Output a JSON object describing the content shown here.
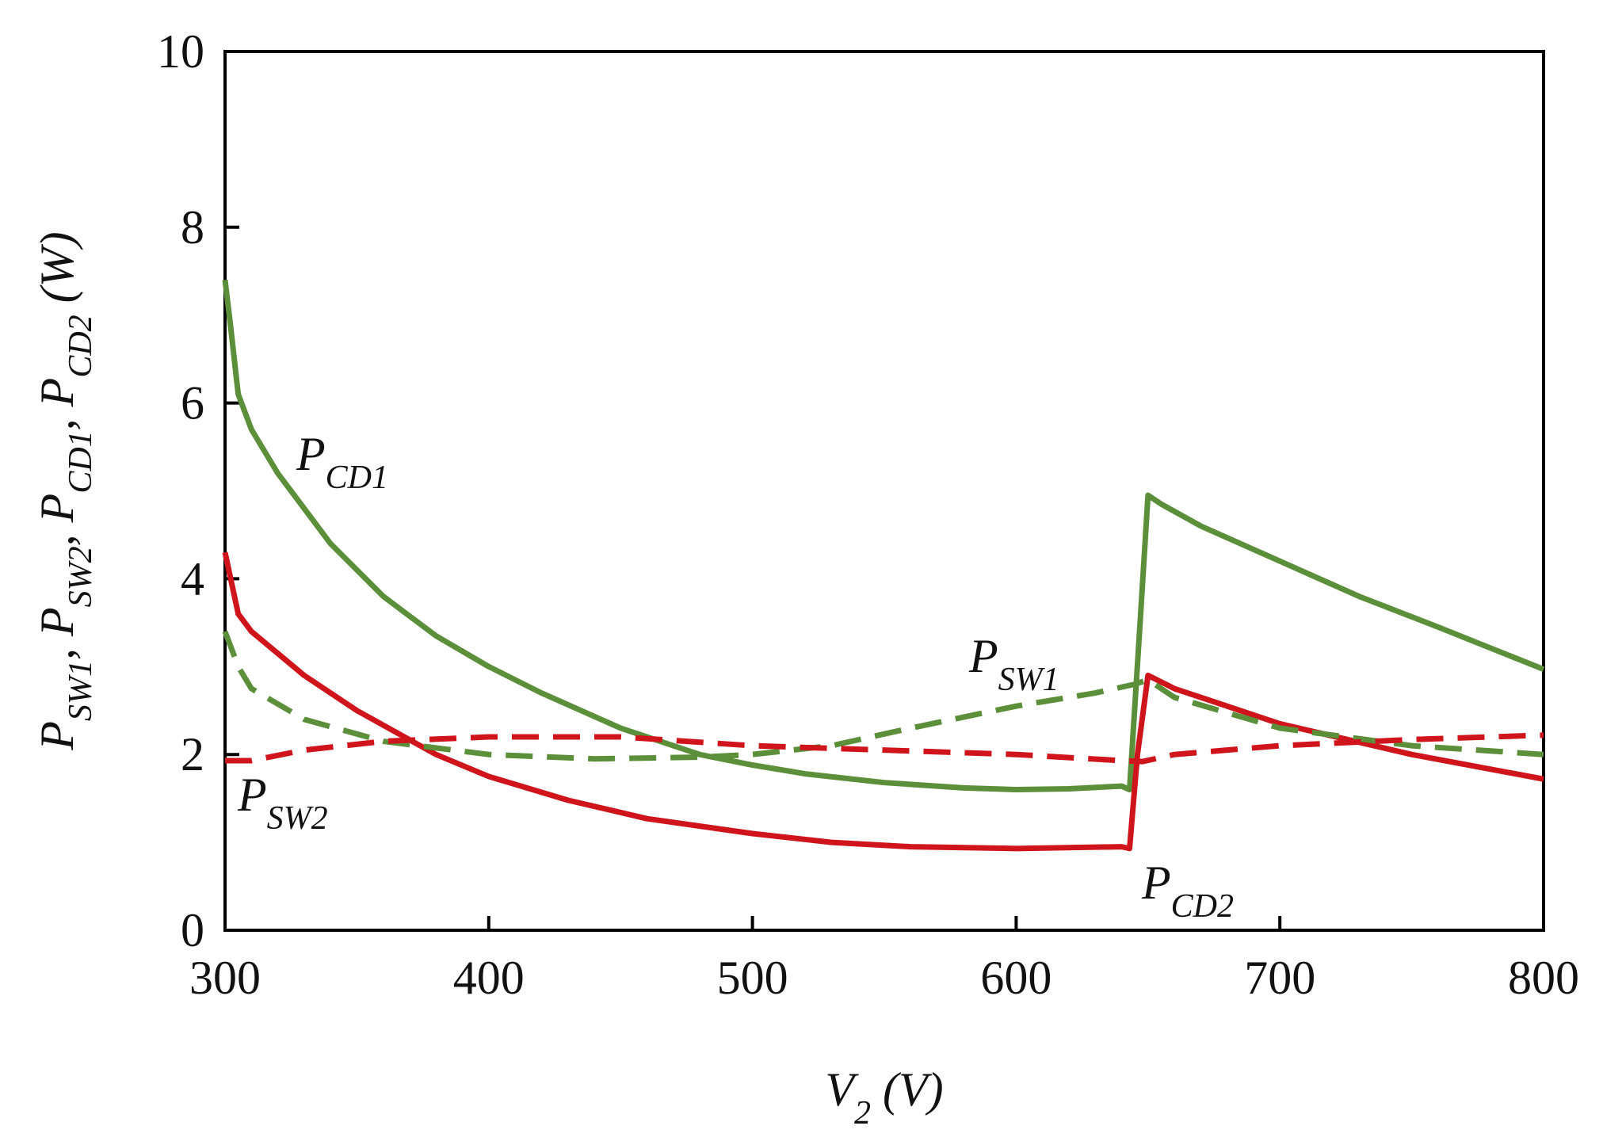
{
  "chart_data": {
    "type": "line",
    "xlabel": [
      {
        "text": "V",
        "sub": "2"
      },
      {
        "text": " (V)"
      }
    ],
    "ylabel": [
      {
        "text": "P",
        "sub": "SW1"
      },
      {
        "text": ", P",
        "sub": "SW2"
      },
      {
        "text": ", P",
        "sub": "CD1"
      },
      {
        "text": ", P",
        "sub": "CD2"
      },
      {
        "text": " (W)"
      }
    ],
    "xlim": [
      300,
      800
    ],
    "xticks": [
      300,
      400,
      500,
      600,
      700,
      800
    ],
    "ylim": [
      0,
      10
    ],
    "yticks": [
      0,
      2,
      4,
      6,
      8,
      10
    ],
    "series": [
      {
        "name": "P_CD1",
        "color": "#5b8f3a",
        "dashed": false,
        "x": [
          300,
          302,
          305,
          310,
          320,
          340,
          360,
          380,
          400,
          420,
          450,
          480,
          500,
          520,
          550,
          580,
          600,
          620,
          640,
          643,
          647,
          650,
          655,
          670,
          700,
          730,
          760,
          800
        ],
        "values": [
          7.4,
          6.9,
          6.1,
          5.7,
          5.2,
          4.4,
          3.8,
          3.35,
          3.0,
          2.7,
          2.3,
          2.0,
          1.88,
          1.78,
          1.68,
          1.62,
          1.6,
          1.61,
          1.64,
          1.6,
          3.5,
          4.95,
          4.85,
          4.6,
          4.2,
          3.8,
          3.45,
          2.97
        ]
      },
      {
        "name": "P_CD2",
        "color": "#d0141c",
        "dashed": false,
        "x": [
          300,
          305,
          310,
          330,
          350,
          380,
          400,
          430,
          460,
          500,
          530,
          560,
          600,
          640,
          643,
          646,
          650,
          660,
          700,
          750,
          800
        ],
        "values": [
          4.3,
          3.6,
          3.4,
          2.9,
          2.5,
          2.0,
          1.75,
          1.48,
          1.27,
          1.1,
          1.0,
          0.95,
          0.93,
          0.95,
          0.93,
          2.0,
          2.9,
          2.75,
          2.35,
          2.0,
          1.72
        ]
      },
      {
        "name": "P_SW1",
        "color": "#5b8f3a",
        "dashed": true,
        "x": [
          300,
          305,
          310,
          330,
          360,
          400,
          440,
          480,
          500,
          530,
          560,
          600,
          630,
          645,
          650,
          660,
          700,
          750,
          800
        ],
        "values": [
          3.4,
          3.0,
          2.75,
          2.4,
          2.15,
          2.0,
          1.95,
          1.97,
          2.0,
          2.1,
          2.3,
          2.55,
          2.7,
          2.8,
          2.85,
          2.65,
          2.3,
          2.1,
          2.0
        ]
      },
      {
        "name": "P_SW2",
        "color": "#d0141c",
        "dashed": true,
        "x": [
          300,
          310,
          330,
          360,
          400,
          450,
          500,
          550,
          600,
          640,
          648,
          660,
          700,
          750,
          800
        ],
        "values": [
          1.93,
          1.93,
          2.05,
          2.15,
          2.2,
          2.2,
          2.1,
          2.05,
          2.0,
          1.93,
          1.92,
          2.0,
          2.1,
          2.17,
          2.22
        ]
      }
    ],
    "annotations": [
      {
        "text": "P",
        "sub": "CD1"
      },
      {
        "text": "P",
        "sub": "SW1"
      },
      {
        "text": "P",
        "sub": "SW2"
      },
      {
        "text": "P",
        "sub": "CD2"
      }
    ]
  }
}
